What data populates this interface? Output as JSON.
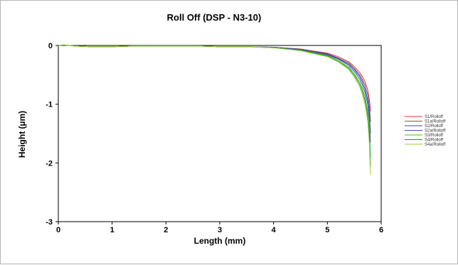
{
  "chart_data": {
    "type": "line",
    "title": "Roll Off (DSP - N3-10)",
    "xlabel": "Length (mm)",
    "ylabel": "Height (µm)",
    "xlim": [
      0,
      6
    ],
    "ylim": [
      -3,
      0
    ],
    "xticks": [
      0,
      1,
      2,
      3,
      4,
      5,
      6
    ],
    "yticks": [
      0,
      -1,
      -2,
      -3
    ],
    "grid": false,
    "legend_position": "right",
    "series": [
      {
        "name": "S1/Rolloff",
        "color": "#e8302f",
        "x": [
          0,
          0.1,
          0.3,
          0.6,
          1.0,
          1.4,
          2.0,
          2.6,
          3.0,
          3.5,
          4.0,
          4.5,
          5.0,
          5.2,
          5.4,
          5.5,
          5.6,
          5.65,
          5.7,
          5.75,
          5.78,
          5.8
        ],
        "y": [
          0,
          0.01,
          -0.01,
          -0.02,
          -0.02,
          -0.01,
          -0.01,
          -0.01,
          -0.02,
          -0.02,
          -0.03,
          -0.06,
          -0.13,
          -0.19,
          -0.28,
          -0.36,
          -0.46,
          -0.53,
          -0.62,
          -0.76,
          -0.92,
          -1.12
        ]
      },
      {
        "name": "S1a/Rolloff",
        "color": "#7a5a3a",
        "x": [
          0,
          0.1,
          0.3,
          0.6,
          1.0,
          1.4,
          2.0,
          2.6,
          3.0,
          3.5,
          4.0,
          4.5,
          5.0,
          5.2,
          5.4,
          5.5,
          5.6,
          5.65,
          5.7,
          5.75,
          5.78,
          5.8
        ],
        "y": [
          0,
          0.01,
          -0.01,
          -0.02,
          -0.02,
          -0.01,
          -0.01,
          -0.01,
          -0.02,
          -0.02,
          -0.03,
          -0.06,
          -0.14,
          -0.21,
          -0.3,
          -0.39,
          -0.5,
          -0.58,
          -0.68,
          -0.84,
          -1.02,
          -1.3
        ]
      },
      {
        "name": "S2/Rolloff",
        "color": "#3f3fd6",
        "x": [
          0,
          0.1,
          0.3,
          0.6,
          1.0,
          1.4,
          2.0,
          2.6,
          3.0,
          3.5,
          4.0,
          4.5,
          5.0,
          5.2,
          5.4,
          5.5,
          5.6,
          5.65,
          5.7,
          5.75,
          5.78,
          5.8
        ],
        "y": [
          0,
          0.01,
          -0.01,
          -0.02,
          -0.02,
          -0.01,
          -0.01,
          -0.01,
          -0.02,
          -0.02,
          -0.03,
          -0.07,
          -0.15,
          -0.22,
          -0.32,
          -0.41,
          -0.53,
          -0.62,
          -0.74,
          -0.93,
          -1.15,
          -1.5
        ]
      },
      {
        "name": "S2a/Rolloff",
        "color": "#4b4bc8",
        "x": [
          0,
          0.1,
          0.3,
          0.6,
          1.0,
          1.4,
          2.0,
          2.6,
          3.0,
          3.5,
          4.0,
          4.5,
          5.0,
          5.2,
          5.4,
          5.5,
          5.6,
          5.65,
          5.7,
          5.75,
          5.78,
          5.8
        ],
        "y": [
          0,
          0.01,
          -0.01,
          -0.02,
          -0.02,
          -0.01,
          -0.01,
          -0.01,
          -0.02,
          -0.02,
          -0.03,
          -0.07,
          -0.16,
          -0.23,
          -0.34,
          -0.44,
          -0.57,
          -0.67,
          -0.8,
          -1.0,
          -1.25,
          -1.65
        ]
      },
      {
        "name": "S3/Rolloff",
        "color": "#36c236",
        "x": [
          0,
          0.1,
          0.3,
          0.6,
          1.0,
          1.4,
          2.0,
          2.6,
          3.0,
          3.5,
          4.0,
          4.5,
          5.0,
          5.2,
          5.4,
          5.5,
          5.6,
          5.65,
          5.7,
          5.75,
          5.78,
          5.8
        ],
        "y": [
          0,
          0.01,
          -0.01,
          -0.02,
          -0.02,
          -0.01,
          -0.01,
          -0.01,
          -0.02,
          -0.02,
          -0.04,
          -0.08,
          -0.17,
          -0.25,
          -0.37,
          -0.48,
          -0.62,
          -0.73,
          -0.88,
          -1.12,
          -1.42,
          -1.9
        ]
      },
      {
        "name": "S4/Rolloff",
        "color": "#1a9a1a",
        "x": [
          0,
          0.1,
          0.3,
          0.6,
          1.0,
          1.4,
          2.0,
          2.6,
          3.0,
          3.5,
          4.0,
          4.5,
          5.0,
          5.2,
          5.4,
          5.5,
          5.6,
          5.65,
          5.7,
          5.75,
          5.78,
          5.8
        ],
        "y": [
          0,
          0.01,
          -0.01,
          -0.02,
          -0.02,
          -0.01,
          -0.01,
          -0.01,
          -0.02,
          -0.02,
          -0.04,
          -0.08,
          -0.18,
          -0.27,
          -0.39,
          -0.51,
          -0.66,
          -0.78,
          -0.94,
          -1.2,
          -1.55,
          -2.05
        ]
      },
      {
        "name": "S4a/Rolloff",
        "color": "#9acd32",
        "x": [
          0,
          0.1,
          0.3,
          0.6,
          1.0,
          1.4,
          2.0,
          2.6,
          3.0,
          3.5,
          4.0,
          4.5,
          5.0,
          5.2,
          5.4,
          5.5,
          5.6,
          5.65,
          5.7,
          5.75,
          5.78,
          5.8
        ],
        "y": [
          0,
          0.01,
          -0.01,
          -0.02,
          -0.02,
          -0.01,
          -0.01,
          -0.01,
          -0.02,
          -0.02,
          -0.04,
          -0.09,
          -0.19,
          -0.28,
          -0.41,
          -0.54,
          -0.7,
          -0.83,
          -1.0,
          -1.28,
          -1.68,
          -2.2
        ]
      }
    ]
  }
}
